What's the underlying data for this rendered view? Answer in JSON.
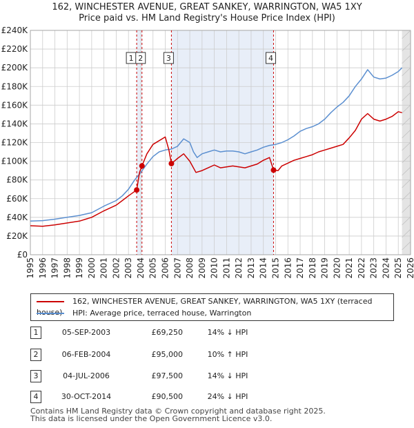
{
  "title_line1": "162, WINCHESTER AVENUE, GREAT SANKEY, WARRINGTON, WA5 1XY",
  "title_line2": "Price paid vs. HM Land Registry's House Price Index (HPI)",
  "colors": {
    "property": "#cc0000",
    "hpi": "#5b8fd0",
    "band": "#e8eef8",
    "grid": "#cccccc"
  },
  "chart_data": {
    "type": "line",
    "title": "Price paid vs. HM Land Registry's House Price Index (HPI)",
    "xlabel": "",
    "ylabel": "",
    "xlim": [
      1995,
      2026
    ],
    "ylim": [
      0,
      240000
    ],
    "grid": true,
    "x_ticks": [
      "1995",
      "1996",
      "1997",
      "1998",
      "1999",
      "2000",
      "2001",
      "2002",
      "2003",
      "2004",
      "2005",
      "2006",
      "2007",
      "2008",
      "2009",
      "2010",
      "2011",
      "2012",
      "2013",
      "2014",
      "2015",
      "2016",
      "2017",
      "2018",
      "2019",
      "2020",
      "2021",
      "2022",
      "2023",
      "2024",
      "2025",
      "2026"
    ],
    "y_ticks": [
      "£0",
      "£20K",
      "£40K",
      "£60K",
      "£80K",
      "£100K",
      "£120K",
      "£140K",
      "£160K",
      "£180K",
      "£200K",
      "£220K",
      "£240K"
    ],
    "series": [
      {
        "name": "162, WINCHESTER AVENUE, GREAT SANKEY, WARRINGTON, WA5 1XY (terraced house)",
        "x": [
          1995.0,
          1996.0,
          1997.0,
          1998.0,
          1999.0,
          2000.0,
          2001.0,
          2002.0,
          2002.5,
          2003.0,
          2003.67,
          2003.9,
          2004.1,
          2004.5,
          2005.0,
          2005.5,
          2006.0,
          2006.3,
          2006.5,
          2007.0,
          2007.5,
          2008.0,
          2008.5,
          2009.0,
          2009.5,
          2010.0,
          2010.5,
          2011.0,
          2011.5,
          2012.0,
          2012.5,
          2013.0,
          2013.5,
          2014.0,
          2014.5,
          2014.83,
          2015.2,
          2015.5,
          2016.0,
          2016.5,
          2017.0,
          2017.5,
          2018.0,
          2018.5,
          2019.0,
          2019.5,
          2020.0,
          2020.5,
          2021.0,
          2021.5,
          2022.0,
          2022.5,
          2023.0,
          2023.5,
          2024.0,
          2024.5,
          2025.0,
          2025.3
        ],
        "y": [
          31000,
          30500,
          32000,
          34000,
          36000,
          40000,
          47000,
          53000,
          58000,
          63000,
          69250,
          88000,
          95000,
          108000,
          118000,
          122000,
          126000,
          112000,
          97500,
          103000,
          108000,
          100000,
          88000,
          90000,
          93000,
          96000,
          93000,
          94000,
          95000,
          94000,
          93000,
          95000,
          97000,
          101000,
          104000,
          90500,
          90000,
          95000,
          98000,
          101000,
          103000,
          105000,
          107000,
          110000,
          112000,
          114000,
          116000,
          118000,
          125000,
          133000,
          145000,
          151000,
          145000,
          143000,
          145000,
          148000,
          153000,
          152000
        ]
      },
      {
        "name": "HPI: Average price, terraced house, Warrington",
        "x": [
          1995.0,
          1996.0,
          1997.0,
          1998.0,
          1999.0,
          2000.0,
          2001.0,
          2002.0,
          2002.5,
          2003.0,
          2003.5,
          2004.0,
          2004.5,
          2005.0,
          2005.5,
          2006.0,
          2006.5,
          2007.0,
          2007.5,
          2008.0,
          2008.3,
          2008.6,
          2009.0,
          2009.5,
          2010.0,
          2010.5,
          2011.0,
          2011.5,
          2012.0,
          2012.5,
          2013.0,
          2013.5,
          2014.0,
          2014.5,
          2015.0,
          2015.5,
          2016.0,
          2016.5,
          2017.0,
          2017.5,
          2018.0,
          2018.5,
          2019.0,
          2019.5,
          2020.0,
          2020.5,
          2021.0,
          2021.5,
          2022.0,
          2022.5,
          2023.0,
          2023.5,
          2024.0,
          2024.5,
          2025.0,
          2025.3
        ],
        "y": [
          36000,
          36500,
          38000,
          40000,
          42000,
          45000,
          52000,
          58000,
          63000,
          70000,
          80000,
          88000,
          97000,
          105000,
          110000,
          112000,
          113000,
          116000,
          124000,
          120000,
          110000,
          104000,
          108000,
          110000,
          112000,
          110000,
          111000,
          111000,
          110000,
          108000,
          110000,
          112000,
          115000,
          117000,
          118000,
          120000,
          123000,
          127000,
          132000,
          135000,
          137000,
          140000,
          145000,
          152000,
          158000,
          163000,
          170000,
          180000,
          188000,
          198000,
          190000,
          188000,
          189000,
          192000,
          196000,
          200000
        ]
      }
    ],
    "transactions": [
      {
        "label": "1",
        "date": "05-SEP-2003",
        "x": 2003.67,
        "price_value": 69250,
        "price": "£69,250",
        "hpi": "14% ↓ HPI"
      },
      {
        "label": "2",
        "date": "06-FEB-2004",
        "x": 2004.1,
        "price_value": 95000,
        "price": "£95,000",
        "hpi": "10% ↑ HPI"
      },
      {
        "label": "3",
        "date": "04-JUL-2006",
        "x": 2006.5,
        "price_value": 97500,
        "price": "£97,500",
        "hpi": "14% ↓ HPI"
      },
      {
        "label": "4",
        "date": "30-OCT-2014",
        "x": 2014.83,
        "price_value": 90500,
        "price": "£90,500",
        "hpi": "24% ↓ HPI"
      }
    ]
  },
  "legend": {
    "property_label": "162, WINCHESTER AVENUE, GREAT SANKEY, WARRINGTON, WA5 1XY (terraced house)",
    "hpi_label": "HPI: Average price, terraced house, Warrington"
  },
  "footer_line1": "Contains HM Land Registry data © Crown copyright and database right 2025.",
  "footer_line2": "This data is licensed under the Open Government Licence v3.0."
}
